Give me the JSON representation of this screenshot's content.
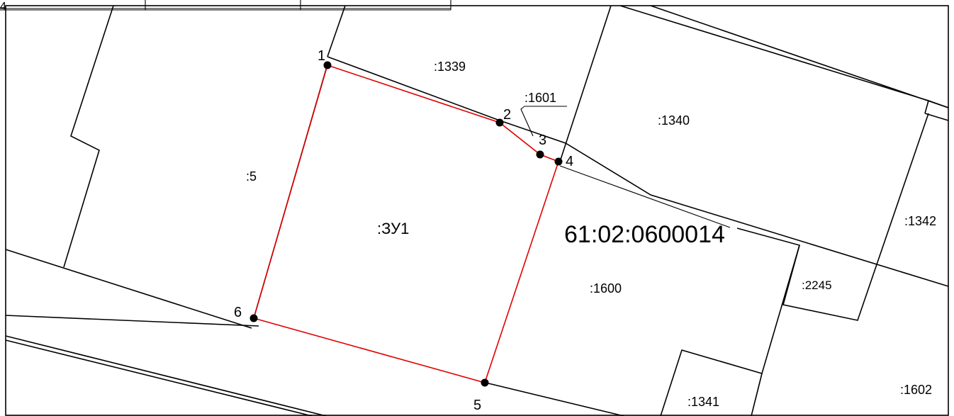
{
  "frame": {
    "corner_label": "4"
  },
  "block": {
    "cadastral_number": "61:02:0600014"
  },
  "new_parcel": {
    "label": ":ЗУ1",
    "boundary_color": "#e00000",
    "points": [
      {
        "label": "1"
      },
      {
        "label": "2"
      },
      {
        "label": "3"
      },
      {
        "label": "4"
      },
      {
        "label": "5"
      },
      {
        "label": "6"
      }
    ]
  },
  "parcels": [
    {
      "label": ":1339"
    },
    {
      "label": ":1601"
    },
    {
      "label": ":1340"
    },
    {
      "label": ":5"
    },
    {
      "label": ":1342"
    },
    {
      "label": ":1600"
    },
    {
      "label": ":2245"
    },
    {
      "label": ":1341"
    },
    {
      "label": ":1602"
    }
  ]
}
